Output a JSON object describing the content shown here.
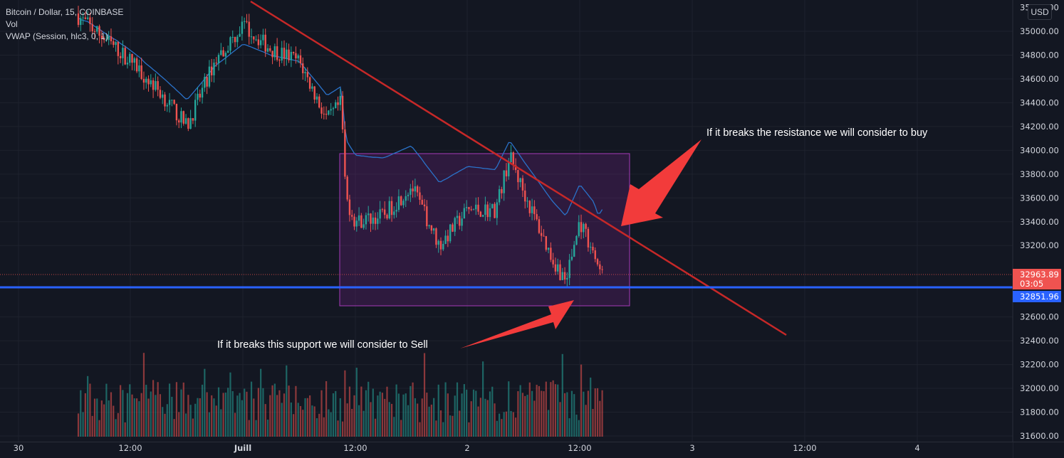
{
  "legend": {
    "title": "Bitcoin / Dollar, 15, COINBASE",
    "vol": "Vol",
    "vwap": "VWAP (Session, hlc3, 0, 1)"
  },
  "currency_badge": "USD",
  "price_axis": {
    "labels": [
      "35000.00",
      "34800.00",
      "34600.00",
      "34400.00",
      "34200.00",
      "34000.00",
      "33800.00",
      "33600.00",
      "33400.00",
      "33200.00",
      "32600.00",
      "32400.00",
      "32200.00",
      "32000.00",
      "31800.00",
      "31600.00"
    ],
    "values": [
      35000,
      34800,
      34600,
      34400,
      34200,
      34000,
      33800,
      33600,
      33400,
      33200,
      32600,
      32400,
      32200,
      32000,
      31800,
      31600
    ],
    "top_partial_label": "35200.00",
    "current_price_label": "32963.89",
    "current_price": 32963.89,
    "countdown_label": "03:05",
    "support_price_label": "32851.96",
    "support_price": 32851.96
  },
  "time_axis": {
    "labels": [
      "30",
      "12:00",
      "Juill",
      "12:00",
      "2",
      "12:00",
      "3",
      "12:00",
      "4"
    ],
    "bold": [
      false,
      false,
      true,
      false,
      false,
      false,
      false,
      false,
      false
    ]
  },
  "annotations": {
    "buy_note": "If it breaks the resistance we will consider to buy",
    "sell_note": "If it breaks this support we will consider to Sell"
  },
  "colors": {
    "background": "#131722",
    "grid": "#1e222d",
    "up": "#26a69a",
    "down": "#ef5350",
    "vwap": "#2962ff",
    "resistance": "#c62828",
    "support": "#2962ff",
    "range_box": "#9c27b0",
    "arrow": "#f23b3b",
    "text": "#d1d4dc"
  },
  "chart_data": {
    "type": "candlestick",
    "title": "Bitcoin / Dollar, 15, COINBASE",
    "xlabel": "",
    "ylabel": "",
    "ylim": [
      31600,
      35200
    ],
    "grid": true,
    "series": [
      {
        "name": "Vol",
        "kind": "volume"
      },
      {
        "name": "VWAP (Session, hlc3, 0, 1)",
        "kind": "line"
      }
    ],
    "price_path": [
      {
        "time": "30 06:00",
        "price": 35150
      },
      {
        "time": "30 09:00",
        "price": 34950
      },
      {
        "time": "30 12:00",
        "price": 34750
      },
      {
        "time": "30 15:00",
        "price": 34500
      },
      {
        "time": "30 18:00",
        "price": 34200
      },
      {
        "time": "30 21:00",
        "price": 34750
      },
      {
        "time": "Juill 00:00",
        "price": 35050
      },
      {
        "time": "Juill 03:00",
        "price": 34850
      },
      {
        "time": "Juill 06:00",
        "price": 34750
      },
      {
        "time": "Juill 09:00",
        "price": 34250
      },
      {
        "time": "Juill 10:30",
        "price": 34400
      },
      {
        "time": "Juill 11:00",
        "price": 33600
      },
      {
        "time": "Juill 12:00",
        "price": 33400
      },
      {
        "time": "Juill 15:00",
        "price": 33450
      },
      {
        "time": "Juill 18:00",
        "price": 33700
      },
      {
        "time": "Juill 21:00",
        "price": 33200
      },
      {
        "time": "2 00:00",
        "price": 33500
      },
      {
        "time": "2 03:00",
        "price": 33500
      },
      {
        "time": "2 04:30",
        "price": 33950
      },
      {
        "time": "2 06:00",
        "price": 33650
      },
      {
        "time": "2 09:00",
        "price": 33100
      },
      {
        "time": "2 10:30",
        "price": 32900
      },
      {
        "time": "2 12:00",
        "price": 33400
      },
      {
        "time": "2 13:30",
        "price": 33150
      },
      {
        "time": "2 14:00",
        "price": 32950
      },
      {
        "time": "2 15:00",
        "price": 33200
      },
      {
        "time": "2 15:30",
        "price": 32963.89
      }
    ],
    "resistance_line": {
      "from": {
        "time": "Juill 00:00",
        "price": 35150
      },
      "to": {
        "time": "3 12:00",
        "price": 32500
      }
    },
    "support_line": {
      "price": 32851.96
    },
    "range_box": {
      "time_from": "Juill 11:00",
      "time_to": "2 17:00",
      "price_high": 33980,
      "price_low": 32700
    }
  }
}
